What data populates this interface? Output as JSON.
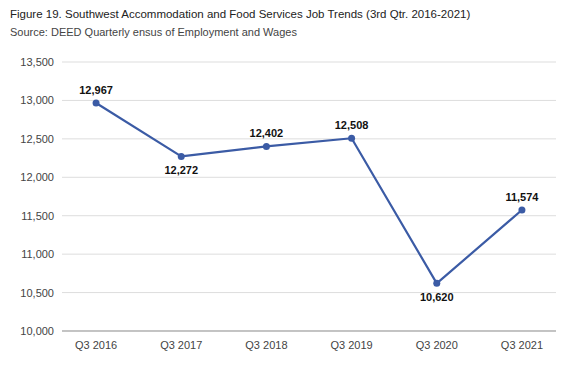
{
  "chart_data": {
    "type": "line",
    "title": "Figure 19. Southwest Accommodation and Food Services Job Trends (3rd Qtr. 2016-2021)",
    "subtitle": "Source: DEED Quarterly ensus of Employment and Wages",
    "categories": [
      "Q3 2016",
      "Q3 2017",
      "Q3 2018",
      "Q3 2019",
      "Q3 2020",
      "Q3 2021"
    ],
    "values": [
      12967,
      12272,
      12402,
      12508,
      10620,
      11574
    ],
    "value_labels": [
      "12,967",
      "12,272",
      "12,402",
      "12,508",
      "10,620",
      "11,574"
    ],
    "data_labels": true,
    "color": "#3B5BA5",
    "marker": "circle",
    "ylim": [
      10000,
      13500
    ],
    "yticks": [
      {
        "value": 10000,
        "label": "10,000"
      },
      {
        "value": 10500,
        "label": "10,500"
      },
      {
        "value": 11000,
        "label": "11,000"
      },
      {
        "value": 11500,
        "label": "11,500"
      },
      {
        "value": 12000,
        "label": "12,000"
      },
      {
        "value": 12500,
        "label": "12,500"
      },
      {
        "value": 13000,
        "label": "13,000"
      },
      {
        "value": 13500,
        "label": "13,500"
      }
    ],
    "grid": true
  }
}
